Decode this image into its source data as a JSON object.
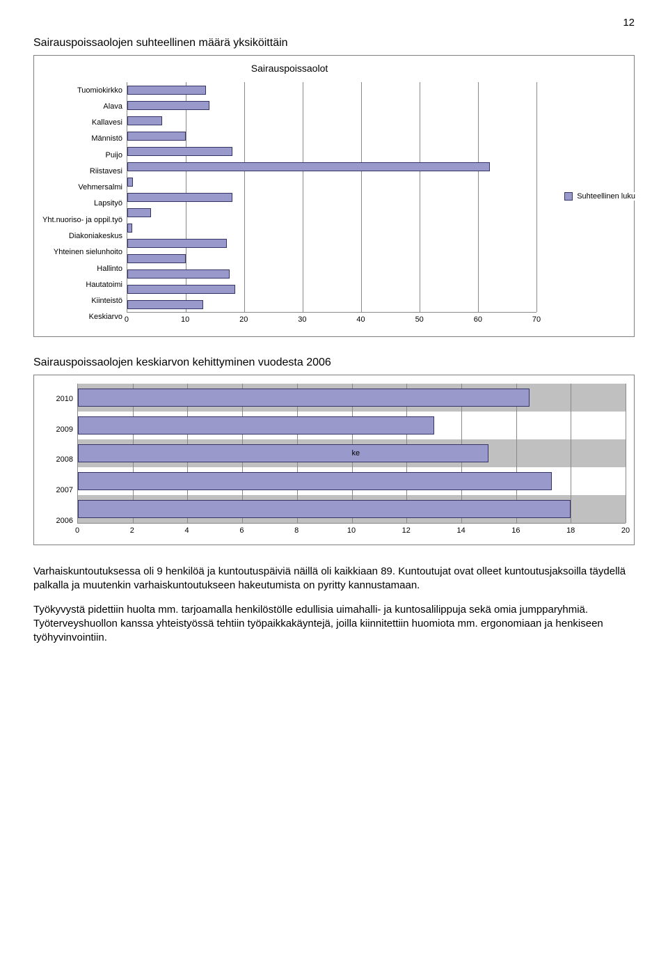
{
  "page_number": "12",
  "section1_title": "Sairauspoissaolojen suhteellinen määrä yksiköittäin",
  "chart1": {
    "type": "bar-horizontal",
    "title": "Sairauspoissaolot",
    "categories": [
      "Tuomiokirkko",
      "Alava",
      "Kallavesi",
      "Männistö",
      "Puijo",
      "Riistavesi",
      "Vehmersalmi",
      "Lapsityö",
      "Yht.nuoriso- ja oppil.työ",
      "Diakoniakeskus",
      "Yhteinen sielunhoito",
      "Hallinto",
      "Hautatoimi",
      "Kiinteistö",
      "Keskiarvo"
    ],
    "values": [
      13.5,
      14.0,
      6.0,
      10.0,
      18.0,
      62.0,
      0.9,
      18.0,
      4.0,
      0.8,
      17.0,
      10.0,
      17.5,
      18.5,
      13.0
    ],
    "xmin": 0,
    "xmax": 70,
    "xtick_step": 10,
    "bar_color": "#9999cc",
    "bar_border": "#333366",
    "grid_color": "#888888",
    "background": "#ffffff",
    "legend_label": "Suhteellinen luku",
    "label_fontsize": 11
  },
  "section2_title": "Sairauspoissaolojen keskiarvon kehittyminen vuodesta 2006",
  "chart2": {
    "type": "bar-horizontal",
    "categories": [
      "2010",
      "2009",
      "2008",
      "2007",
      "2006"
    ],
    "values": [
      16.5,
      13.0,
      15.0,
      17.3,
      18.0
    ],
    "xmin": 0,
    "xmax": 20,
    "xtick_step": 2,
    "bar_color": "#9999cc",
    "bar_border": "#333366",
    "band_color": "#c0c0c0",
    "grid_color": "#888888",
    "background": "#ffffff",
    "label_fontsize": 11,
    "inline_label": "ke",
    "inline_label_row": 2
  },
  "paragraphs": [
    "Varhaiskuntoutuksessa oli 9 henkilöä ja kuntoutuspäiviä näillä oli kaikkiaan 89. Kuntoutujat ovat olleet kuntoutusjaksoilla täydellä palkalla ja muutenkin varhaiskuntoutukseen hakeutumista on pyritty kannustamaan.",
    "Työkyvystä pidettiin huolta mm. tarjoamalla henkilöstölle edullisia uimahalli- ja kuntosalilippuja sekä omia jumpparyhmiä. Työterveyshuollon kanssa yhteistyössä tehtiin työpaikkakäyntejä, joilla kiinnitettiin huomiota mm. ergonomiaan ja henkiseen työhyvinvointiin."
  ]
}
